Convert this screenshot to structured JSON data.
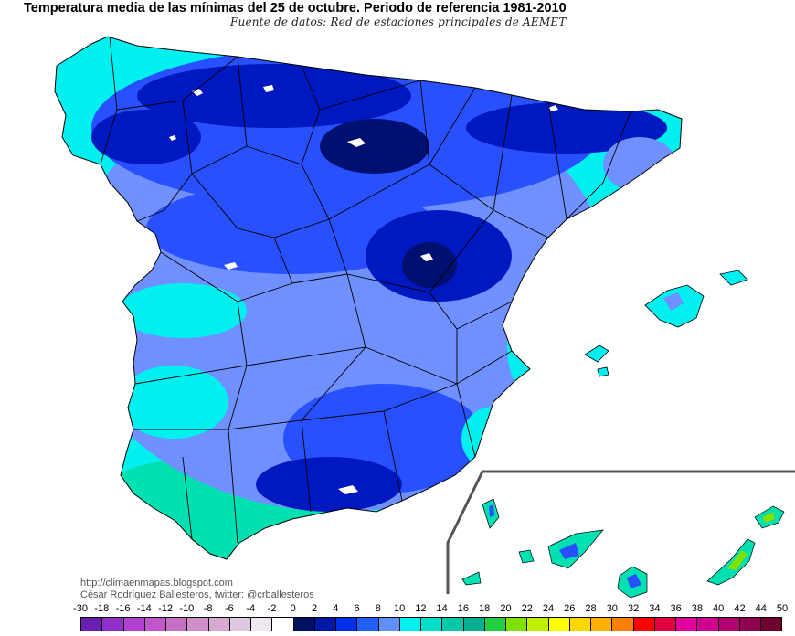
{
  "title": "Temperatura media de las mínimas del 25 de octubre. Periodo de referencia 1981-2010",
  "subtitle": "Fuente de datos: Red de estaciones principales de AEMET",
  "credits": {
    "blog": "http://climaenmapas.blogspot.com",
    "author": "César Rodríguez Ballesteros, twitter: @crballesteros"
  },
  "legend": {
    "labels": [
      "-30",
      "-18",
      "-16",
      "-14",
      "-12",
      "-10",
      "-8",
      "-6",
      "-4",
      "-2",
      "0",
      "2",
      "4",
      "6",
      "8",
      "10",
      "12",
      "14",
      "16",
      "18",
      "20",
      "22",
      "24",
      "26",
      "28",
      "30",
      "32",
      "34",
      "36",
      "38",
      "40",
      "42",
      "44",
      "50"
    ],
    "colors": [
      "#6a1fb3",
      "#8e2fc9",
      "#b33fd0",
      "#c255c9",
      "#c76fc4",
      "#d08fc6",
      "#d8a8d0",
      "#e0c8e0",
      "#f0e8f0",
      "#ffffff",
      "#001060",
      "#0018a8",
      "#0030e8",
      "#2060ff",
      "#6090ff",
      "#00f0f0",
      "#00e0c8",
      "#00c8a8",
      "#00b090",
      "#20d040",
      "#80e000",
      "#c0f000",
      "#ffff00",
      "#ffd800",
      "#ffb000",
      "#ff8000",
      "#ff0000",
      "#e00040",
      "#e000a0",
      "#d00090",
      "#b00070",
      "#900050",
      "#700030"
    ]
  },
  "colors": {
    "coast": "#00f0f0",
    "coast_green": "#00e0b0",
    "mid_blue": "#7090ff",
    "blue": "#2850ff",
    "deep_blue": "#0018c0",
    "navy": "#001070",
    "border": "#000000"
  }
}
